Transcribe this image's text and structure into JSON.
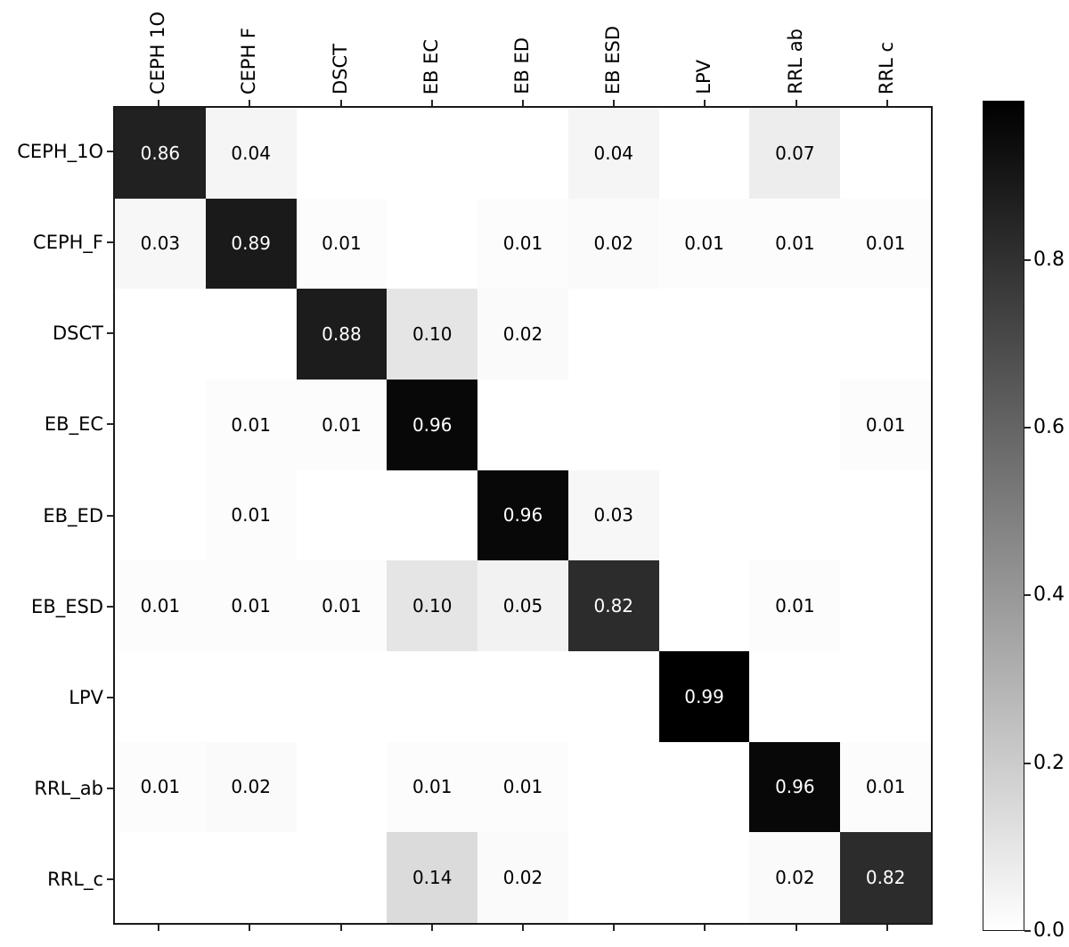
{
  "figure": {
    "background": "#ffffff",
    "kind": "confusion-matrix-heatmap"
  },
  "colors": {
    "cmap_low": "#ffffff",
    "cmap_high": "#000000",
    "spine": "#1a1a1a",
    "tick": "#262626",
    "cell_text_dark": "#000000",
    "cell_text_light": "#ffffff"
  },
  "chart_data": {
    "type": "heatmap",
    "title": "",
    "xlabel": "",
    "ylabel": "",
    "row_labels": [
      "CEPH_1O",
      "CEPH_F",
      "DSCT",
      "EB_EC",
      "EB_ED",
      "EB_ESD",
      "LPV",
      "RRL_ab",
      "RRL_c"
    ],
    "col_labels": [
      "CEPH 1O",
      "CEPH F",
      "DSCT",
      "EB EC",
      "EB ED",
      "EB ESD",
      "LPV",
      "RRL ab",
      "RRL c"
    ],
    "matrix": [
      [
        0.86,
        0.04,
        0,
        0,
        0,
        0.04,
        0,
        0.07,
        0
      ],
      [
        0.03,
        0.89,
        0.01,
        0,
        0.01,
        0.02,
        0.01,
        0.01,
        0.01
      ],
      [
        0,
        0,
        0.88,
        0.1,
        0.02,
        0,
        0,
        0,
        0
      ],
      [
        0,
        0.01,
        0.01,
        0.96,
        0,
        0,
        0,
        0,
        0.01
      ],
      [
        0,
        0.01,
        0,
        0,
        0.96,
        0.03,
        0,
        0,
        0
      ],
      [
        0.01,
        0.01,
        0.01,
        0.1,
        0.05,
        0.82,
        0,
        0.01,
        0
      ],
      [
        0,
        0,
        0,
        0,
        0,
        0,
        0.99,
        0,
        0
      ],
      [
        0.01,
        0.02,
        0,
        0.01,
        0.01,
        0,
        0,
        0.96,
        0.01
      ],
      [
        0,
        0,
        0,
        0.14,
        0.02,
        0,
        0,
        0.02,
        0.82
      ]
    ],
    "annotation_rule": "cells with value 0 are left blank; others show value with 2 decimals",
    "colormap": "grayscale white(0) to black(max)",
    "grid": false,
    "legend": "none",
    "colorbar": {
      "position": "right",
      "vmin": 0.0,
      "vmax": 0.99,
      "tick_labels": [
        "0.8",
        "0.6",
        "0.4",
        "0.2",
        "0.0"
      ],
      "tick_values": [
        0.8,
        0.6,
        0.4,
        0.2,
        0.0
      ]
    }
  }
}
